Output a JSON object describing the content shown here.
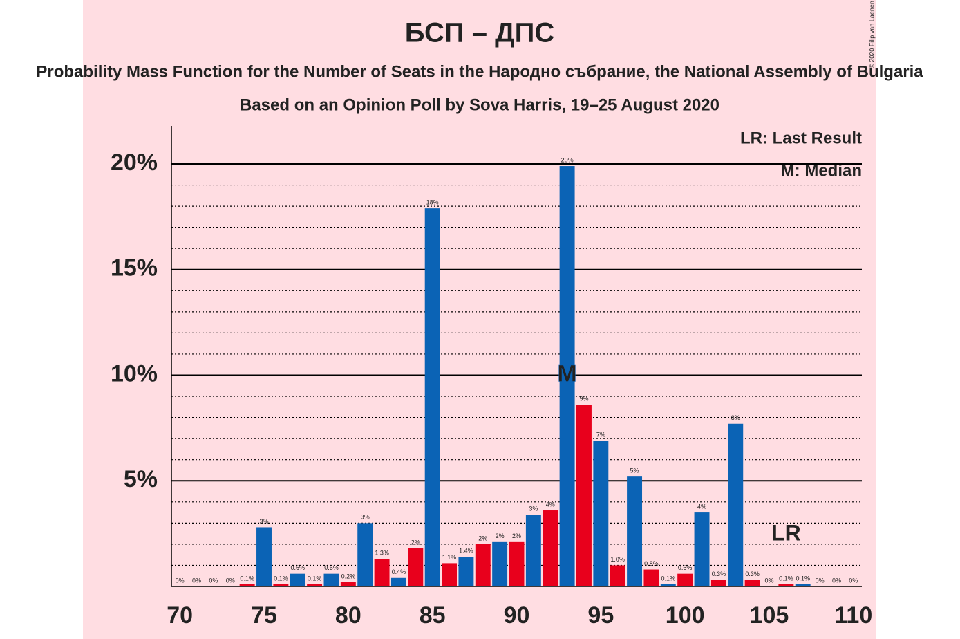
{
  "chart_data": {
    "type": "bar",
    "title": "БСП – ДПС",
    "subtitle": "Probability Mass Function for the Number of Seats in the Народно събрание, the National Assembly of Bulgaria",
    "subtitle2": "Based on an Opinion Poll by Sova Harris, 19–25 August 2020",
    "copyright": "© 2020 Filip van Laenen",
    "legend": [
      "LR: Last Result",
      "M: Median"
    ],
    "median": {
      "x": 93,
      "label": "M"
    },
    "last_result": {
      "x": 106,
      "label": "LR"
    },
    "x": [
      70,
      71,
      72,
      73,
      74,
      75,
      76,
      77,
      78,
      79,
      80,
      81,
      82,
      83,
      84,
      85,
      86,
      87,
      88,
      89,
      90,
      91,
      92,
      93,
      94,
      95,
      96,
      97,
      98,
      99,
      100,
      101,
      102,
      103,
      104,
      105,
      106,
      107,
      108,
      109,
      110
    ],
    "values": [
      0,
      0,
      0,
      0,
      0.1,
      2.8,
      0.1,
      0.6,
      0.1,
      0.6,
      0.2,
      3.0,
      1.3,
      0.4,
      1.8,
      17.9,
      1.1,
      1.4,
      2.0,
      2.1,
      2.1,
      3.4,
      3.6,
      19.9,
      8.6,
      6.9,
      1.0,
      5.2,
      0.8,
      0.1,
      0.6,
      3.5,
      0.3,
      7.7,
      0.3,
      0,
      0.1,
      0.1,
      0,
      0,
      0
    ],
    "value_labels": [
      "0%",
      "0%",
      "0%",
      "0%",
      "0.1%",
      "3%",
      "0.1%",
      "0.6%",
      "0.1%",
      "0.6%",
      "0.2%",
      "3%",
      "1.3%",
      "0.4%",
      "2%",
      "18%",
      "1.1%",
      "1.4%",
      "2%",
      "2%",
      "2%",
      "3%",
      "4%",
      "20%",
      "9%",
      "7%",
      "1.0%",
      "5%",
      "0.8%",
      "0.1%",
      "0.6%",
      "4%",
      "0.3%",
      "8%",
      "0.3%",
      "0%",
      "0.1%",
      "0.1%",
      "0%",
      "0%",
      "0%"
    ],
    "colors": [
      "#e8001c",
      "#0b63b5",
      "#e8001c",
      "#0b63b5",
      "#e8001c",
      "#0b63b5",
      "#e8001c",
      "#0b63b5",
      "#e8001c",
      "#0b63b5",
      "#e8001c",
      "#0b63b5",
      "#e8001c",
      "#0b63b5",
      "#e8001c",
      "#0b63b5",
      "#e8001c",
      "#0b63b5",
      "#e8001c",
      "#0b63b5",
      "#e8001c",
      "#0b63b5",
      "#e8001c",
      "#0b63b5",
      "#e8001c",
      "#0b63b5",
      "#e8001c",
      "#0b63b5",
      "#e8001c",
      "#0b63b5",
      "#e8001c",
      "#0b63b5",
      "#e8001c",
      "#0b63b5",
      "#e8001c",
      "#0b63b5",
      "#e8001c",
      "#0b63b5",
      "#e8001c",
      "#0b63b5",
      "#e8001c"
    ],
    "xlim": [
      69.5,
      110.5
    ],
    "xticks": [
      70,
      75,
      80,
      85,
      90,
      95,
      100,
      105,
      110
    ],
    "ylim": [
      0,
      21.8
    ],
    "yticks": [
      {
        "value": 5,
        "label": "5%"
      },
      {
        "value": 10,
        "label": "10%"
      },
      {
        "value": 15,
        "label": "15%"
      },
      {
        "value": 20,
        "label": "20%"
      }
    ],
    "minor_yticks": [
      1,
      2,
      3,
      4,
      6,
      7,
      8,
      9,
      11,
      12,
      13,
      14,
      16,
      17,
      18,
      19
    ],
    "grid": true
  }
}
